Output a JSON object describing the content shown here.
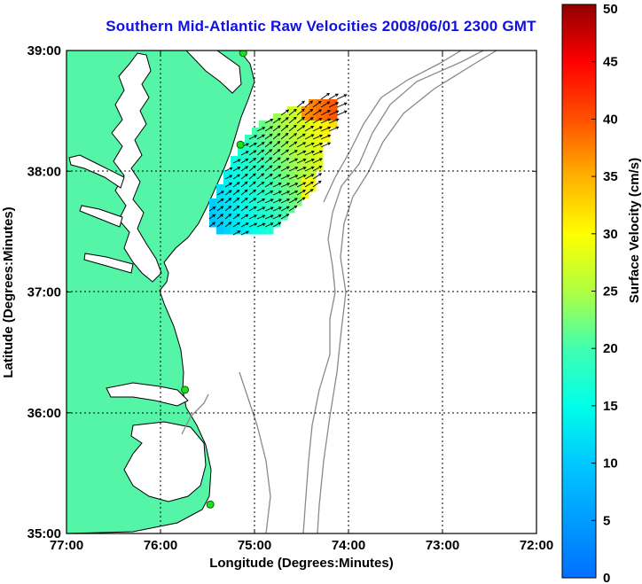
{
  "title": "Southern Mid-Atlantic Raw Velocities 2008/06/01 2300 GMT",
  "map": {
    "xlabel": "Longitude (Degrees:Minutes)",
    "ylabel": "Latitude (Degrees:Minutes)",
    "lon_range": [
      -77,
      -72
    ],
    "lat_range": [
      35,
      39
    ],
    "lon_ticks": [
      "77:00",
      "76:00",
      "75:00",
      "74:00",
      "73:00",
      "72:00"
    ],
    "lat_ticks": [
      "35:00",
      "36:00",
      "37:00",
      "38:00",
      "39:00"
    ],
    "grid": true,
    "colors": {
      "land": "#55f5a8",
      "water": "#ffffff",
      "coastline": "#000000",
      "bathymetry": "#8a8a8a",
      "station": "#22dd22",
      "title": "#1010e0"
    }
  },
  "stations": [
    {
      "lon": -75.12,
      "lat": 38.98
    },
    {
      "lon": -75.15,
      "lat": 38.22
    },
    {
      "lon": -75.74,
      "lat": 36.19
    },
    {
      "lon": -75.47,
      "lat": 35.24
    }
  ],
  "colorbar": {
    "label": "Surface Velocity (cm/s)",
    "min": 0,
    "max": 50,
    "ticks": [
      "0",
      "5",
      "10",
      "15",
      "20",
      "25",
      "30",
      "35",
      "40",
      "45",
      "50"
    ]
  }
}
